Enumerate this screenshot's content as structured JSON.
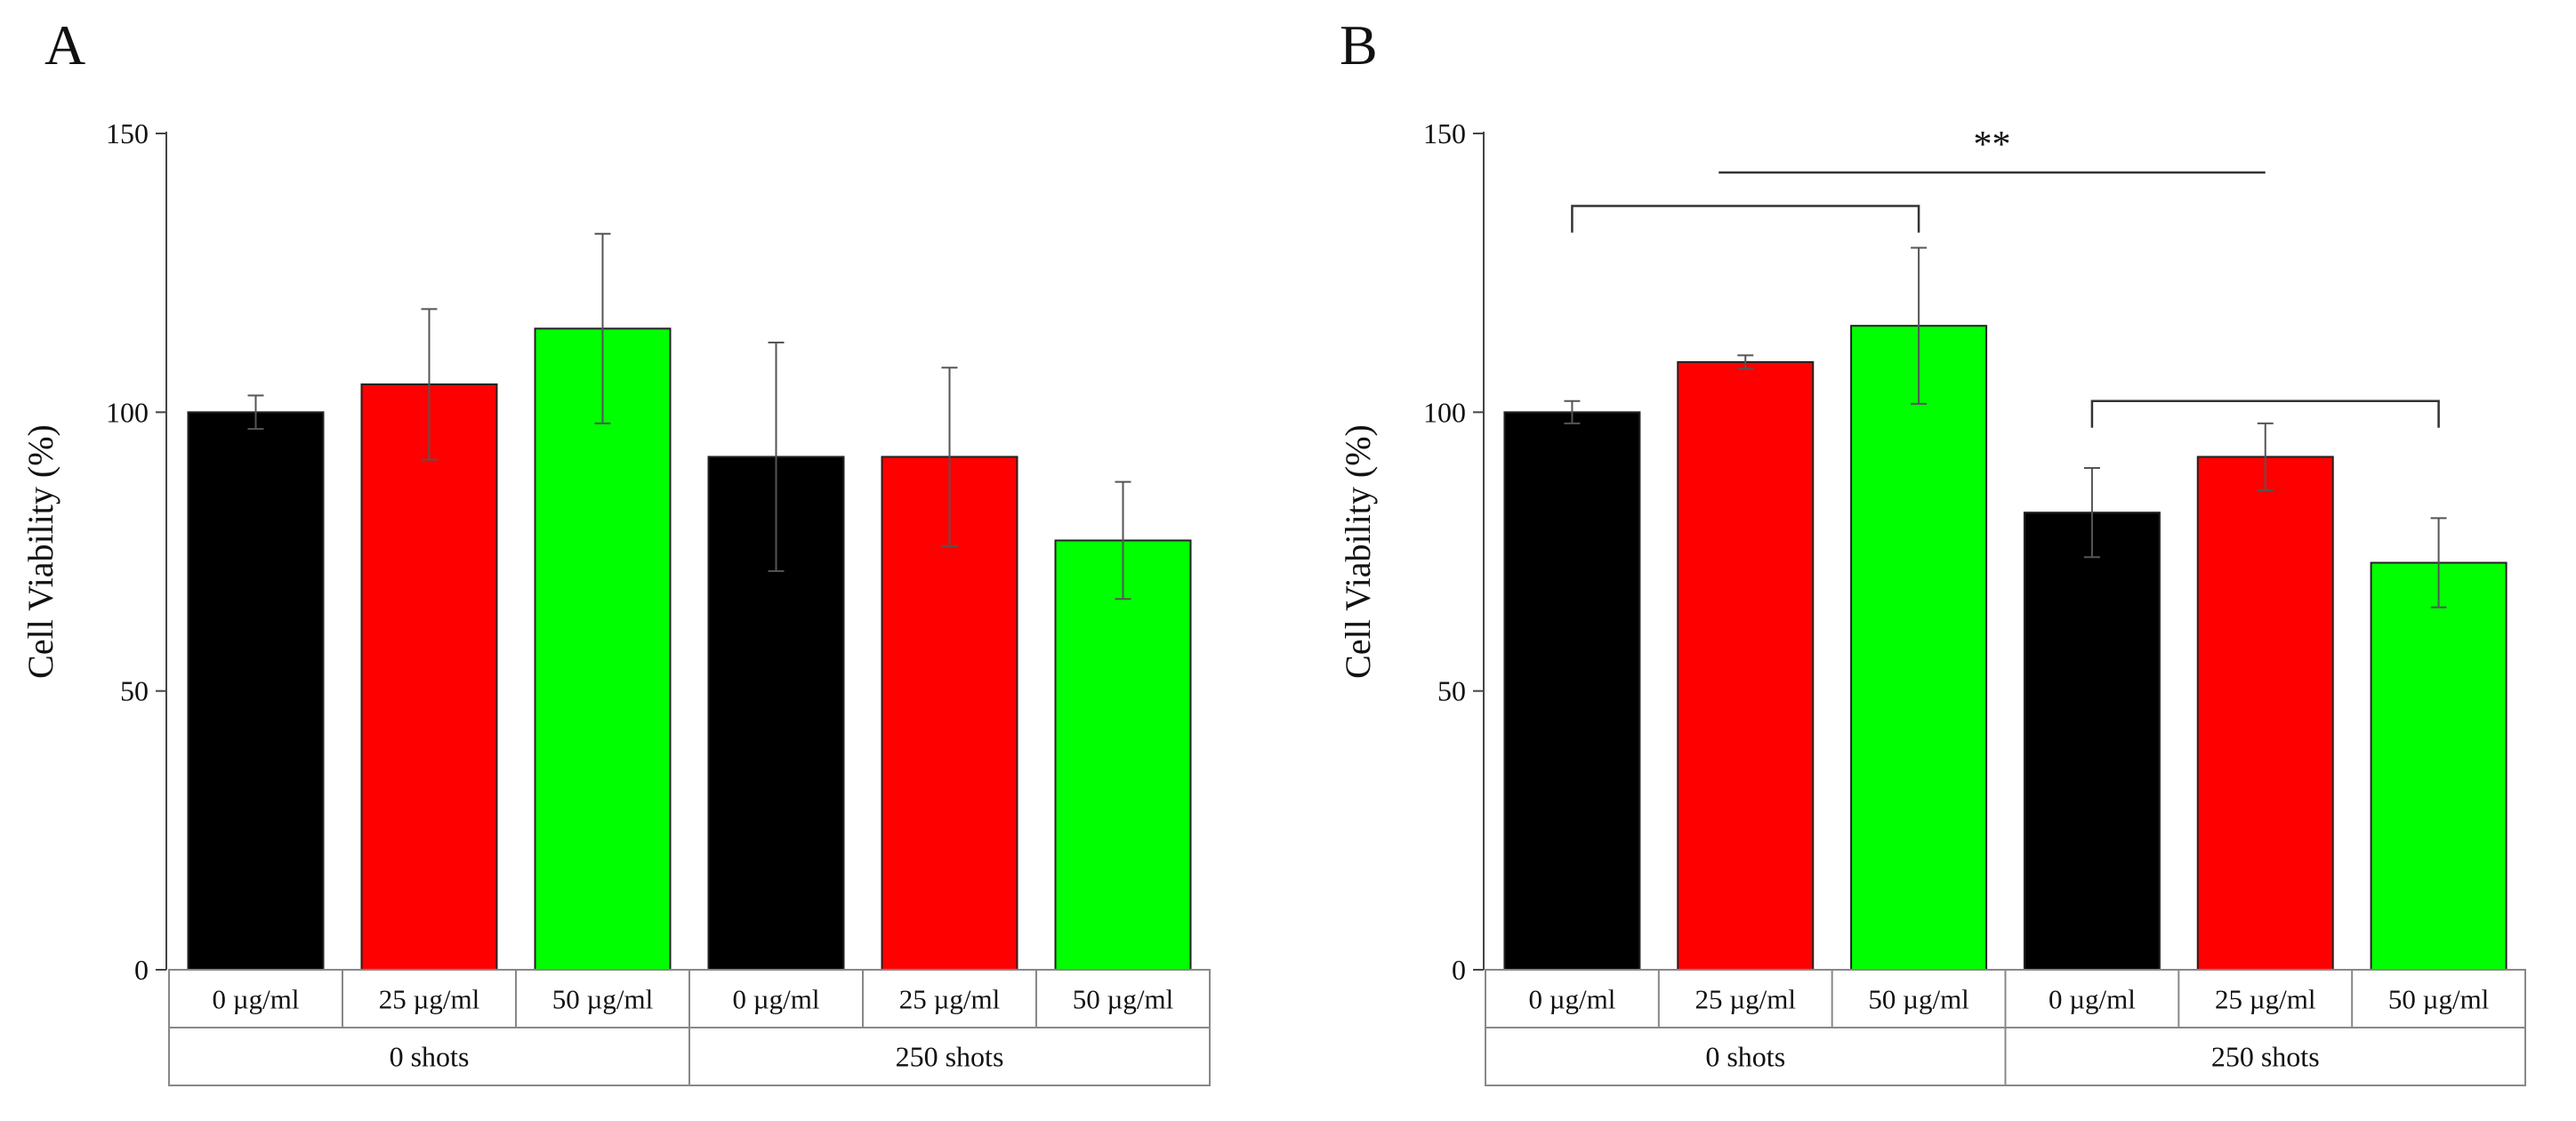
{
  "figure": {
    "panels": [
      {
        "letter": "A"
      },
      {
        "letter": "B"
      }
    ]
  },
  "chart_data": [
    {
      "type": "bar",
      "panel": "A",
      "ylabel": "Cell Viability (%)",
      "ylim": [
        0,
        150
      ],
      "yticks": [
        0,
        50,
        100,
        150
      ],
      "categories": [
        "0 µg/ml",
        "25 µg/ml",
        "50 µg/ml",
        "0 µg/ml",
        "25 µg/ml",
        "50 µg/ml"
      ],
      "groups": [
        {
          "label": "0 shots",
          "span": [
            0,
            2
          ]
        },
        {
          "label": "250 shots",
          "span": [
            3,
            5
          ]
        }
      ],
      "values": [
        100,
        105,
        115,
        92,
        92,
        77
      ],
      "errors": [
        3,
        13.5,
        17,
        20.5,
        16,
        10.5
      ],
      "colors": [
        "#000000",
        "#ff0000",
        "#00ff00",
        "#000000",
        "#ff0000",
        "#00ff00"
      ],
      "significance": []
    },
    {
      "type": "bar",
      "panel": "B",
      "ylabel": "Cell Viability (%)",
      "ylim": [
        0,
        150
      ],
      "yticks": [
        0,
        50,
        100,
        150
      ],
      "categories": [
        "0 µg/ml",
        "25 µg/ml",
        "50 µg/ml",
        "0 µg/ml",
        "25 µg/ml",
        "50 µg/ml"
      ],
      "groups": [
        {
          "label": "0 shots",
          "span": [
            0,
            2
          ]
        },
        {
          "label": "250 shots",
          "span": [
            3,
            5
          ]
        }
      ],
      "values": [
        100,
        109,
        115.5,
        82,
        92,
        73
      ],
      "errors": [
        2,
        1.2,
        14,
        8,
        6,
        8
      ],
      "colors": [
        "#000000",
        "#ff0000",
        "#00ff00",
        "#000000",
        "#ff0000",
        "#00ff00"
      ],
      "significance": [
        {
          "from": 0,
          "to": 2,
          "at": 137,
          "label": ""
        },
        {
          "from": 3,
          "to": 5,
          "at": 102,
          "label": ""
        },
        {
          "line_from": 1,
          "line_to": 4,
          "at": 143,
          "label": "**"
        }
      ]
    }
  ]
}
